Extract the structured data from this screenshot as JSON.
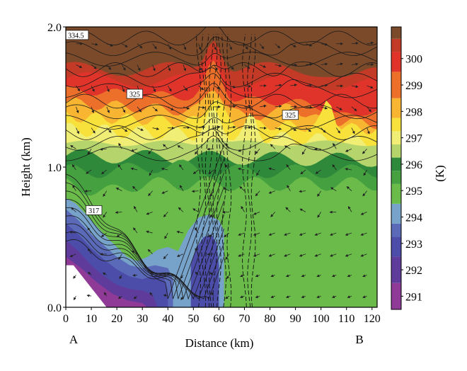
{
  "chart_data": {
    "type": "heatmap",
    "title": "",
    "xlabel": "Distance (km)",
    "ylabel": "Height (km)",
    "colorbar_label": "(K)",
    "xlim": [
      0,
      122
    ],
    "ylim": [
      0.0,
      2.0
    ],
    "x_ticks": [
      0,
      10,
      20,
      30,
      40,
      50,
      60,
      70,
      80,
      90,
      100,
      110,
      120
    ],
    "y_ticks": [
      0.0,
      1.0,
      2.0
    ],
    "y_tick_labels": [
      "0.0",
      "1.0",
      "2.0"
    ],
    "section_endpoints": [
      "A",
      "B"
    ],
    "colorbar": {
      "ticks": [
        291,
        292,
        293,
        294,
        295,
        296,
        297,
        298,
        299,
        300
      ],
      "range": [
        290.5,
        301.2
      ],
      "colors": [
        {
          "value": 291,
          "color": "#8e3a96"
        },
        {
          "value": 292,
          "color": "#5f3c9c"
        },
        {
          "value": 293,
          "color": "#4b4da8"
        },
        {
          "value": 293.5,
          "color": "#5a6ab8"
        },
        {
          "value": 294,
          "color": "#77a2c9"
        },
        {
          "value": 295,
          "color": "#6abb4a"
        },
        {
          "value": 295.5,
          "color": "#45a040"
        },
        {
          "value": 296,
          "color": "#2e8a3a"
        },
        {
          "value": 296.5,
          "color": "#b5d46c"
        },
        {
          "value": 297,
          "color": "#f0ee74"
        },
        {
          "value": 297.5,
          "color": "#f7e13a"
        },
        {
          "value": 298,
          "color": "#f7b532"
        },
        {
          "value": 299,
          "color": "#ec6f2a"
        },
        {
          "value": 300,
          "color": "#e0332a"
        },
        {
          "value": 300.5,
          "color": "#c33a26"
        },
        {
          "value": 301,
          "color": "#7a4a2a"
        }
      ]
    },
    "contour_labels": [
      {
        "text": "325",
        "x": 27,
        "y": 1.52
      },
      {
        "text": "325",
        "x": 88,
        "y": 1.37
      },
      {
        "text": "317",
        "x": 11,
        "y": 0.69
      },
      {
        "text": "334.5",
        "x": 4,
        "y": 1.94
      }
    ],
    "plot_background": "#6abb4a"
  }
}
